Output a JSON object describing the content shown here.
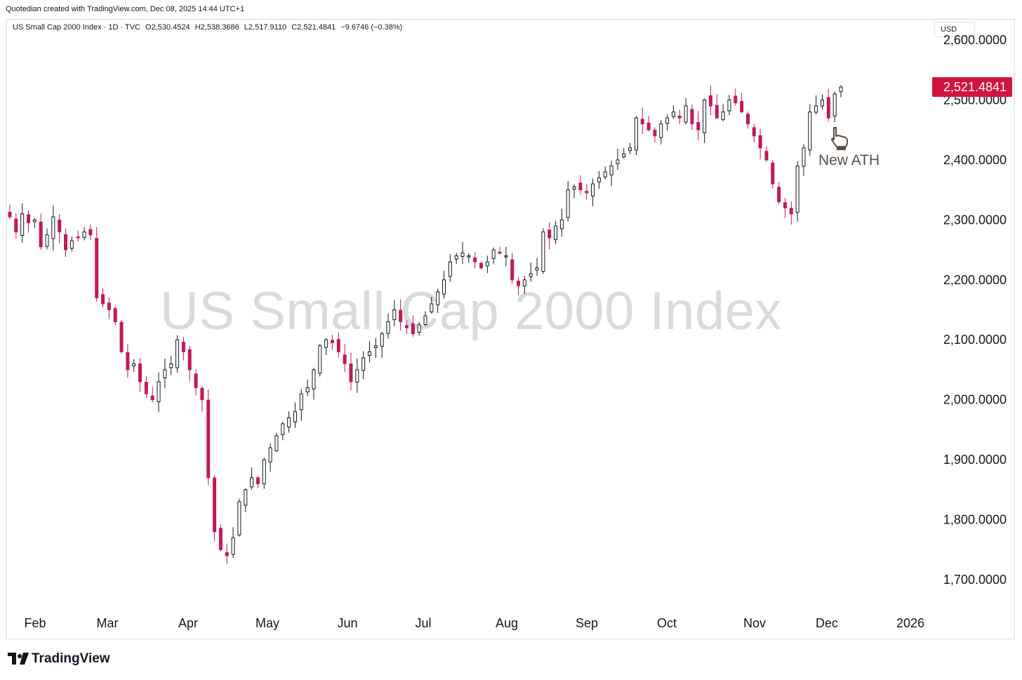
{
  "credit": "Quotedian created with TradingView.com, Dec 08, 2025 14:44 UTC+1",
  "legend": {
    "symbol": "US Small Cap 2000 Index · 1D · TVC",
    "open": "O2,530.4524",
    "high": "H2,538.3686",
    "low": "L2,517.9110",
    "close": "C2,521.4841",
    "change": "−9.6746 (−0.38%)"
  },
  "currency": "USD",
  "watermark": "US Small Cap 2000 Index",
  "annotation": "New ATH",
  "brand": "TradingView",
  "last_price_label": "2,521.4841",
  "colors": {
    "up": "#131722",
    "down": "#c2185b",
    "last_price_bg": "#d1143f",
    "annotation": "#5d4e40"
  },
  "chart_data": {
    "type": "candlestick",
    "title": "US Small Cap 2000 Index",
    "ylim": [
      1665,
      2615
    ],
    "y_ticks": [
      "2,600.0000",
      "2,500.0000",
      "2,400.0000",
      "2,300.0000",
      "2,200.0000",
      "2,100.0000",
      "2,000.0000",
      "1,900.0000",
      "1,800.0000",
      "1,700.0000"
    ],
    "x_ticks": [
      "Feb",
      "Mar",
      "Apr",
      "May",
      "Jun",
      "Jul",
      "Aug",
      "Sep",
      "Oct",
      "Nov",
      "Dec",
      "2026"
    ],
    "last_price": 2521.4841,
    "close_path_points": [
      [
        2305,
        2280,
        2310,
        2295,
        2300,
        2255,
        2275,
        2305,
        2280,
        2250,
        2265,
        2270,
        2280,
        2275,
        2170,
        2160,
        2150,
        2130,
        2080,
        2050,
        2060,
        2030,
        2010,
        2000,
        2030,
        2050,
        2060,
        2100,
        2080,
        2050,
        2020,
        2000,
        1870,
        1780,
        1750,
        1740,
        1770,
        1830,
        1850,
        1870,
        1860,
        1900,
        1920,
        1940,
        1960,
        1970,
        1980,
        2010,
        2020,
        2050,
        2090,
        2100,
        2095,
        2080,
        2060,
        2030,
        2050,
        2070,
        2080,
        2090,
        2110,
        2130,
        2150,
        2130,
        2120,
        2110,
        2125,
        2140,
        2160,
        2180,
        2200,
        2230,
        2240,
        2245,
        2240,
        2230,
        2220,
        2230,
        2250,
        2245,
        2240,
        2200,
        2190,
        2200,
        2210,
        2220,
        2280,
        2270,
        2290,
        2300,
        2350,
        2355,
        2350,
        2345,
        2360,
        2370,
        2380,
        2390,
        2400,
        2410,
        2420,
        2470,
        2460,
        2450,
        2440,
        2460,
        2470,
        2480,
        2470,
        2490,
        2460,
        2450,
        2500,
        2490,
        2470,
        2480,
        2500,
        2495,
        2480,
        2460,
        2440,
        2420,
        2400,
        2360,
        2330,
        2320,
        2310,
        2390,
        2420,
        2480,
        2490,
        2500,
        2470,
        2510,
        2521.48
      ]
    ]
  }
}
